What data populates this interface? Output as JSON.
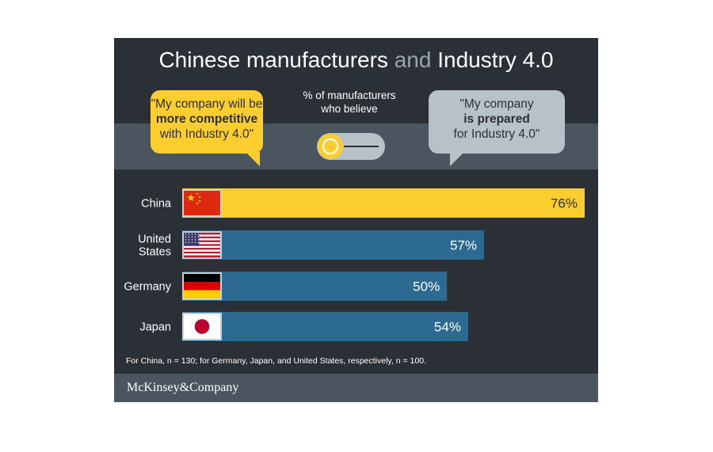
{
  "header": {
    "title_part1": "Chinese manufacturers",
    "title_and": "and",
    "title_part2": "Industry 4.0"
  },
  "bubble_left": {
    "line1": "\"My company will be",
    "line2": "more competitive",
    "line3": "with Industry 4.0\""
  },
  "middle_caption": {
    "line1": "% of manufacturers",
    "line2": "who believe"
  },
  "bubble_right": {
    "line1": "\"My company",
    "line2": "is prepared",
    "line3": "for Industry 4.0\""
  },
  "chart_data": {
    "type": "bar",
    "orientation": "horizontal",
    "categories": [
      {
        "label": [
          "China"
        ],
        "flag": "china-flag-icon"
      },
      {
        "label": [
          "United",
          "States"
        ],
        "flag": "usa-flag-icon"
      },
      {
        "label": [
          "Germany"
        ],
        "flag": "germany-flag-icon"
      },
      {
        "label": [
          "Japan"
        ],
        "flag": "japan-flag-icon"
      }
    ],
    "values": [
      76,
      57,
      50,
      54
    ],
    "value_labels": [
      "76%",
      "57%",
      "50%",
      "54%"
    ],
    "colors": [
      "#fccd2f",
      "#2c6a91",
      "#2c6a91",
      "#2c6a91"
    ],
    "value_label_colors": [
      "#2b2f36",
      "#ffffff",
      "#ffffff",
      "#ffffff"
    ],
    "xlim": [
      0,
      100
    ],
    "grid": false
  },
  "footnote": "For China, n = 130; for Germany, Japan, and United States, respectively, n = 100.",
  "footer": {
    "brand": "McKinsey&Company"
  },
  "colors": {
    "background": "#2b2f36",
    "band": "#4a5560",
    "accent_yellow": "#fccd2f",
    "bar_blue": "#2c6a91",
    "bubble_gray": "#b6c2c8"
  }
}
